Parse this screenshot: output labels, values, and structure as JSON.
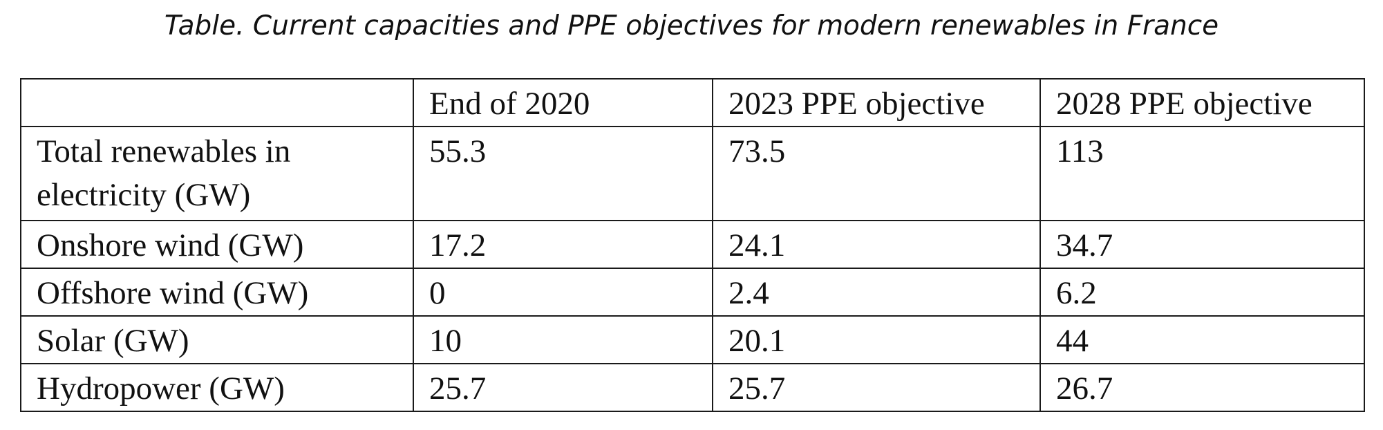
{
  "caption": "Table. Current capacities and PPE objectives for modern renewables in France",
  "table": {
    "headers": [
      "",
      "End of 2020",
      "2023 PPE objective",
      "2028 PPE objective"
    ],
    "rows": [
      {
        "label": "Total renewables in electricity (GW)",
        "values": [
          "55.3",
          "73.5",
          "113"
        ]
      },
      {
        "label": "Onshore wind (GW)",
        "values": [
          "17.2",
          "24.1",
          "34.7"
        ]
      },
      {
        "label": "Offshore wind (GW)",
        "values": [
          "0",
          "2.4",
          "6.2"
        ]
      },
      {
        "label": "Solar (GW)",
        "values": [
          "10",
          "20.1",
          "44"
        ]
      },
      {
        "label": "Hydropower (GW)",
        "values": [
          "25.7",
          "25.7",
          "26.7"
        ]
      }
    ]
  }
}
